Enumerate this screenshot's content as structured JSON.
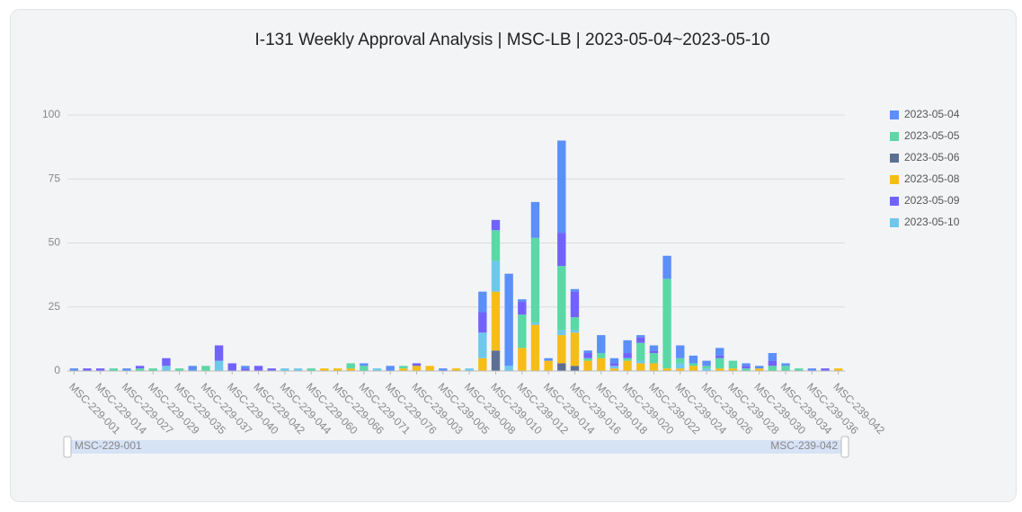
{
  "chart_data": {
    "type": "stacked_bar",
    "title": "I-131 Weekly Approval Analysis | MSC-LB | 2023-05-04~2023-05-10",
    "categories": [
      "MSC-229-001",
      null,
      "MSC-229-014",
      null,
      "MSC-229-027",
      null,
      "MSC-229-029",
      null,
      "MSC-229-035",
      null,
      "MSC-229-037",
      null,
      "MSC-229-040",
      null,
      "MSC-229-042",
      null,
      "MSC-229-044",
      null,
      "MSC-229-060",
      null,
      "MSC-229-066",
      null,
      "MSC-229-071",
      null,
      "MSC-229-076",
      null,
      "MSC-239-003",
      null,
      "MSC-239-005",
      null,
      "MSC-239-008",
      null,
      "MSC-239-010",
      null,
      "MSC-239-012",
      null,
      "MSC-239-014",
      null,
      "MSC-239-016",
      null,
      "MSC-239-018",
      null,
      "MSC-239-020",
      null,
      "MSC-239-022",
      null,
      "MSC-239-024",
      null,
      "MSC-239-026",
      null,
      "MSC-239-028",
      null,
      "MSC-239-030",
      null,
      "MSC-239-034",
      null,
      "MSC-239-036",
      null,
      "MSC-239-042"
    ],
    "series": [
      {
        "name": "2023-05-04",
        "color": "#5b8ff9",
        "values": [
          1,
          0,
          0,
          0,
          1,
          0,
          0,
          0,
          0,
          2,
          0,
          0,
          0,
          1,
          0,
          0,
          0,
          0,
          0,
          0,
          0,
          0,
          1,
          0,
          2,
          0,
          0,
          0,
          1,
          0,
          0,
          8,
          0,
          36,
          1,
          14,
          1,
          36,
          1,
          1,
          7,
          2,
          5,
          1,
          2,
          9,
          5,
          3,
          2,
          3,
          0,
          1,
          1,
          3,
          1,
          0,
          1,
          0,
          0
        ]
      },
      {
        "name": "2023-05-05",
        "color": "#5ad8a6",
        "values": [
          0,
          0,
          0,
          1,
          0,
          1,
          1,
          0,
          1,
          0,
          2,
          0,
          0,
          0,
          0,
          0,
          0,
          0,
          1,
          0,
          0,
          2,
          2,
          0,
          0,
          1,
          0,
          0,
          0,
          0,
          0,
          0,
          12,
          0,
          13,
          33,
          0,
          25,
          5,
          1,
          2,
          0,
          1,
          7,
          4,
          35,
          2,
          1,
          1,
          4,
          3,
          1,
          0,
          2,
          2,
          1,
          0,
          0,
          0
        ]
      },
      {
        "name": "2023-05-06",
        "color": "#5d7092",
        "values": [
          0,
          0,
          0,
          0,
          0,
          0,
          0,
          0,
          0,
          0,
          0,
          0,
          0,
          0,
          0,
          0,
          0,
          0,
          0,
          0,
          0,
          0,
          0,
          0,
          0,
          0,
          0,
          0,
          0,
          0,
          0,
          0,
          8,
          0,
          0,
          0,
          0,
          3,
          2,
          0,
          0,
          0,
          0,
          0,
          0,
          0,
          0,
          0,
          0,
          0,
          0,
          0,
          0,
          0,
          0,
          0,
          0,
          0,
          0
        ]
      },
      {
        "name": "2023-05-08",
        "color": "#f6bd16",
        "values": [
          0,
          0,
          0,
          0,
          0,
          0,
          0,
          0,
          0,
          0,
          0,
          0,
          0,
          0,
          0,
          0,
          0,
          0,
          0,
          1,
          1,
          1,
          0,
          0,
          0,
          1,
          2,
          2,
          0,
          1,
          0,
          5,
          23,
          0,
          9,
          18,
          4,
          11,
          13,
          4,
          5,
          1,
          4,
          3,
          3,
          1,
          1,
          2,
          0,
          1,
          1,
          0,
          1,
          0,
          0,
          0,
          0,
          0,
          1
        ]
      },
      {
        "name": "2023-05-09",
        "color": "#7262fd",
        "values": [
          0,
          1,
          1,
          0,
          0,
          1,
          0,
          3,
          0,
          0,
          0,
          6,
          3,
          1,
          2,
          1,
          0,
          0,
          0,
          0,
          0,
          0,
          0,
          0,
          0,
          0,
          1,
          0,
          0,
          0,
          0,
          8,
          4,
          0,
          5,
          0,
          0,
          13,
          10,
          2,
          0,
          1,
          2,
          2,
          1,
          0,
          0,
          0,
          0,
          1,
          0,
          1,
          0,
          2,
          0,
          0,
          0,
          1,
          0
        ]
      },
      {
        "name": "2023-05-10",
        "color": "#6dc8ec",
        "values": [
          0,
          0,
          0,
          0,
          0,
          0,
          0,
          2,
          0,
          0,
          0,
          4,
          0,
          0,
          0,
          0,
          1,
          1,
          0,
          0,
          0,
          0,
          0,
          1,
          0,
          0,
          0,
          0,
          0,
          0,
          1,
          10,
          12,
          2,
          0,
          1,
          0,
          2,
          1,
          0,
          0,
          1,
          0,
          1,
          0,
          0,
          2,
          0,
          1,
          0,
          0,
          0,
          0,
          0,
          0,
          0,
          0,
          0,
          0
        ]
      }
    ],
    "ylim": [
      0,
      100
    ],
    "yticks": [
      0,
      25,
      50,
      75,
      100
    ],
    "grid": true,
    "legend": "right"
  }
}
